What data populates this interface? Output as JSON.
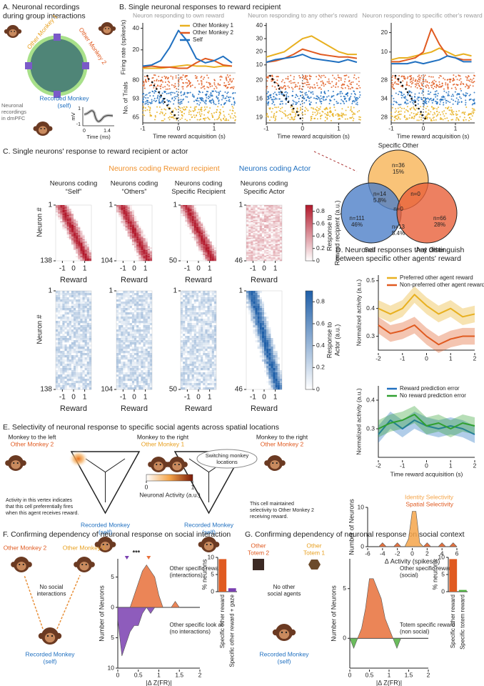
{
  "panel_a": {
    "title": [
      "A. Neuronal recordings",
      "during group interactions"
    ],
    "other_monkey_1": "Other Monkey 1",
    "other_monkey_2": "Other Monkey 2",
    "recorded_monkey": [
      "Recorded Monkey",
      "(self)"
    ],
    "recordings": [
      "Neuronal",
      "recordings",
      "in dmPFC"
    ],
    "waveform": {
      "ylabel": "mV",
      "yticks": [
        "1",
        "-1"
      ],
      "xlabel": "Time (ms)",
      "xticks": [
        "0",
        "1.4"
      ]
    }
  },
  "panel_b": {
    "title": "B. Single neuronal responses to reward recipient"
  },
  "panel_c": {
    "title": "C. Single neurons' response to reward recipient or actor",
    "group_recipient": "Neurons coding Reward recipient",
    "group_actor": "Neurons coding Actor",
    "columns": [
      [
        "Neurons coding",
        "“Self”"
      ],
      [
        "Neurons coding",
        "“Others”"
      ],
      [
        "Neurons coding",
        "Specific Recipient"
      ],
      [
        "Neurons coding",
        "Specific Actor"
      ]
    ],
    "colorbar_recipient": {
      "label": [
        "Response to",
        "Reward recipient (a.u.)"
      ],
      "lim": [
        0,
        0.9
      ],
      "ticks": [
        0,
        0.2,
        0.4,
        0.6,
        0.8
      ]
    },
    "colorbar_actor": {
      "label": [
        "Response to",
        "Actor (a.u.)"
      ],
      "lim": [
        0,
        0.9
      ],
      "ticks": [
        0,
        0.2,
        0.4,
        0.6,
        0.8
      ]
    },
    "venn": {
      "sets": [
        "Specific Other",
        "Self",
        "Any Other"
      ],
      "regions": [
        {
          "label": "n=36",
          "pct": "15%"
        },
        {
          "label": "n=14",
          "pct": "5.8%"
        },
        {
          "label": "n=0"
        },
        {
          "label": "n=0"
        },
        {
          "label": "n=111",
          "pct": "46%"
        },
        {
          "label": "n=13",
          "pct": "5.4%"
        },
        {
          "label": "n=66",
          "pct": "28%"
        }
      ]
    }
  },
  "panel_d": {
    "title": [
      "D. Neuronal responses that distinguish",
      "between specific other agents' reward"
    ]
  },
  "panel_e": {
    "title": "E. Selectivity of neuronal response to specific social agents across spatial locations",
    "left_monkey": [
      "Monkey to the left",
      "Other Monkey 2"
    ],
    "right_monkey": [
      "Monkey to the right",
      "Other Monkey 1"
    ],
    "right_monkey_2": [
      "Monkey to the right",
      "Other Monkey 2"
    ],
    "switching": [
      "Switching monkey",
      "locations"
    ],
    "recorded": [
      "Recorded Monkey",
      "(self)"
    ],
    "note_left": [
      "Activity in this vertex indicates",
      "that this cell preferentially fires",
      "when this agent receives reward."
    ],
    "note_right": [
      "This cell maintained",
      "selectivity to Other Monkey 2",
      "receiving reward."
    ],
    "colorbar": {
      "label": "Neuronal Activity (a.u.)",
      "ticks": [
        0,
        1
      ]
    }
  },
  "panel_f": {
    "title": "F. Confirming dependency of neuronal response on social interaction",
    "other_monkey_2": "Other Monkey 2",
    "other_monkey_1": "Other Monkey 1",
    "no_interactions": [
      "No social",
      "interactions"
    ],
    "recorded": [
      "Recorded Monkey",
      "(self)"
    ]
  },
  "panel_g": {
    "title": "G. Confirming dependency of neuronal response on social context",
    "totem_2": [
      "Other",
      "Totem 2"
    ],
    "totem_1": [
      "Other",
      "Totem 1"
    ],
    "no_agents": [
      "No other",
      "social agents"
    ],
    "recorded": [
      "Recorded Monkey",
      "(self)"
    ]
  },
  "chart_data": [
    {
      "type": "line",
      "subtitle": "Neuron responding to own reward",
      "ylabel": "Firing rate (spikes/s)",
      "xlabel": "Time reward acquisition (s)",
      "raster_ylabel": "No. of Trials",
      "raster_yticks": [
        80,
        93,
        65
      ],
      "x": [
        -1,
        -0.75,
        -0.5,
        -0.25,
        0,
        0.25,
        0.5,
        0.75,
        1,
        1.25,
        1.5
      ],
      "xlim": [
        -1,
        1.6
      ],
      "xticks": [
        -1,
        0,
        1
      ],
      "ylim": [
        0,
        45
      ],
      "yticks": [
        20,
        40
      ],
      "legend": "upper right",
      "series": [
        {
          "name": "Other Monkey 1",
          "color": "#e8b020",
          "values": [
            3,
            3,
            3,
            4,
            5,
            6,
            5,
            5,
            4,
            5,
            5
          ]
        },
        {
          "name": "Other Monkey 2",
          "color": "#e05a20",
          "values": [
            4,
            5,
            4,
            4,
            3,
            3,
            8,
            12,
            10,
            6,
            5
          ]
        },
        {
          "name": "Self",
          "color": "#2070c0",
          "values": [
            5,
            6,
            10,
            22,
            38,
            28,
            12,
            8,
            10,
            14,
            8
          ]
        }
      ]
    },
    {
      "type": "line",
      "subtitle": "Neuron responding to any other's reward",
      "xlabel": "Time reward acquisition (s)",
      "raster_yticks": [
        20,
        16,
        19
      ],
      "x": [
        -1,
        -0.75,
        -0.5,
        -0.25,
        0,
        0.25,
        0.5,
        0.75,
        1,
        1.25,
        1.5
      ],
      "xlim": [
        -1,
        1.6
      ],
      "xticks": [
        -1,
        0,
        1
      ],
      "ylim": [
        5,
        42
      ],
      "yticks": [
        10,
        20,
        30,
        40
      ],
      "series": [
        {
          "color": "#e8b020",
          "values": [
            16,
            18,
            20,
            25,
            30,
            32,
            28,
            24,
            20,
            18,
            18
          ]
        },
        {
          "color": "#e05a20",
          "values": [
            12,
            13,
            15,
            18,
            22,
            20,
            18,
            17,
            16,
            16,
            15
          ]
        },
        {
          "color": "#2070c0",
          "values": [
            12,
            14,
            15,
            16,
            18,
            15,
            14,
            13,
            12,
            14,
            12
          ]
        }
      ]
    },
    {
      "type": "line",
      "subtitle": "Neuron responding to specific other's reward",
      "xlabel": "Time reward acquisition (s)",
      "raster_yticks": [
        28,
        34,
        28
      ],
      "x": [
        -1,
        -0.75,
        -0.5,
        -0.25,
        0,
        0.25,
        0.5,
        0.75,
        1,
        1.25,
        1.5
      ],
      "xlim": [
        -1,
        1.6
      ],
      "xticks": [
        -1,
        0,
        1
      ],
      "ylim": [
        0,
        25
      ],
      "yticks": [
        10,
        20
      ],
      "series": [
        {
          "color": "#e8b020",
          "values": [
            6,
            7,
            7,
            8,
            9,
            10,
            12,
            10,
            8,
            9,
            8
          ]
        },
        {
          "color": "#e05a20",
          "values": [
            5,
            5,
            6,
            7,
            10,
            22,
            14,
            8,
            7,
            6,
            6
          ]
        },
        {
          "color": "#2070c0",
          "values": [
            4,
            4,
            4,
            5,
            4,
            5,
            6,
            8,
            7,
            5,
            5
          ]
        }
      ]
    },
    {
      "type": "heatmap",
      "ylabel": "Neuron #",
      "xlabel": "Reward",
      "ylim": [
        1,
        138
      ],
      "yticks": [
        1,
        138
      ],
      "xlim": [
        -1.6,
        1.6
      ],
      "xticks": [
        -1,
        0,
        1
      ],
      "color": "#b2182b"
    },
    {
      "type": "heatmap",
      "xlabel": "Reward",
      "ylim": [
        1,
        104
      ],
      "yticks": [
        1,
        104
      ],
      "xlim": [
        -1.6,
        1.6
      ],
      "xticks": [
        -1,
        0,
        1
      ],
      "color": "#b2182b"
    },
    {
      "type": "heatmap",
      "xlabel": "Reward",
      "ylim": [
        1,
        50
      ],
      "yticks": [
        1,
        50
      ],
      "xlim": [
        -1.6,
        1.6
      ],
      "xticks": [
        -1,
        0,
        1
      ],
      "color": "#b2182b"
    },
    {
      "type": "heatmap",
      "xlabel": "Reward",
      "ylim": [
        1,
        46
      ],
      "yticks": [
        1,
        46
      ],
      "xlim": [
        -1.6,
        1.6
      ],
      "xticks": [
        -1,
        0,
        1
      ],
      "color": "#b2182b"
    },
    {
      "type": "heatmap",
      "ylabel": "Neuron #",
      "xlabel": "Reward",
      "ylim": [
        1,
        138
      ],
      "yticks": [
        1,
        138
      ],
      "xlim": [
        -1.6,
        1.6
      ],
      "xticks": [
        -1,
        0,
        1
      ],
      "color": "#1f5fa8"
    },
    {
      "type": "heatmap",
      "xlabel": "Reward",
      "ylim": [
        1,
        104
      ],
      "yticks": [
        1,
        104
      ],
      "xlim": [
        -1.6,
        1.6
      ],
      "xticks": [
        -1,
        0,
        1
      ],
      "color": "#1f5fa8"
    },
    {
      "type": "heatmap",
      "xlabel": "Reward",
      "ylim": [
        1,
        50
      ],
      "yticks": [
        1,
        50
      ],
      "xlim": [
        -1.6,
        1.6
      ],
      "xticks": [
        -1,
        0,
        1
      ],
      "color": "#1f5fa8"
    },
    {
      "type": "heatmap",
      "xlabel": "Reward",
      "ylim": [
        1,
        46
      ],
      "yticks": [
        1,
        46
      ],
      "xlim": [
        -1.6,
        1.6
      ],
      "xticks": [
        -1,
        0,
        1
      ],
      "color": "#1f5fa8"
    },
    {
      "type": "line",
      "ylabel": "Normalized activity (a.u.)",
      "x": [
        -2,
        -1.5,
        -1,
        -0.5,
        0,
        0.5,
        1,
        1.5,
        2
      ],
      "xlim": [
        -2,
        2
      ],
      "xticks": [
        -2,
        -1,
        0,
        1,
        2
      ],
      "ylim": [
        0.25,
        0.52
      ],
      "yticks": [
        0.3,
        0.4,
        0.5
      ],
      "legend": "upper left",
      "series": [
        {
          "name": "Preferred other agent reward",
          "color": "#e8b020",
          "values": [
            0.4,
            0.38,
            0.4,
            0.45,
            0.41,
            0.38,
            0.4,
            0.37,
            0.38
          ],
          "errors": [
            0.03,
            0.03,
            0.03,
            0.03,
            0.03,
            0.03,
            0.03,
            0.03,
            0.03
          ]
        },
        {
          "name": "Non-preferred other agent reward",
          "color": "#e05a20",
          "values": [
            0.34,
            0.31,
            0.32,
            0.34,
            0.3,
            0.27,
            0.29,
            0.3,
            0.3
          ],
          "errors": [
            0.03,
            0.03,
            0.03,
            0.03,
            0.03,
            0.03,
            0.03,
            0.03,
            0.03
          ]
        }
      ]
    },
    {
      "type": "line",
      "ylabel": "Normalized activity (a.u.)",
      "xlabel": "Time reward acquisition (s)",
      "x": [
        -2,
        -1.5,
        -1,
        -0.5,
        0,
        0.5,
        1,
        1.5,
        2
      ],
      "xlim": [
        -2,
        2
      ],
      "xticks": [
        -2,
        -1,
        0,
        1,
        2
      ],
      "ylim": [
        0.2,
        0.45
      ],
      "yticks": [
        0.3,
        0.4
      ],
      "legend": "upper left",
      "series": [
        {
          "name": "Reward prediction error",
          "color": "#2070c0",
          "values": [
            0.28,
            0.33,
            0.3,
            0.33,
            0.31,
            0.3,
            0.31,
            0.3,
            0.28
          ],
          "errors": [
            0.03,
            0.03,
            0.03,
            0.03,
            0.03,
            0.03,
            0.03,
            0.03,
            0.03
          ]
        },
        {
          "name": "No reward prediction error",
          "color": "#30a030",
          "values": [
            0.3,
            0.32,
            0.33,
            0.35,
            0.31,
            0.32,
            0.3,
            0.32,
            0.31
          ],
          "errors": [
            0.03,
            0.03,
            0.03,
            0.03,
            0.03,
            0.03,
            0.03,
            0.03,
            0.03
          ]
        }
      ]
    },
    {
      "type": "area",
      "ylabel": "Number of Neurons",
      "xlabel": "Δ Activity (spikes/s)",
      "xlim": [
        -6,
        6
      ],
      "xticks": [
        -6,
        -4,
        -2,
        0,
        2,
        4,
        6
      ],
      "ylim": [
        0,
        10
      ],
      "yticks": [
        0,
        10
      ],
      "legend": "upper right",
      "series": [
        {
          "name": "Identity Selectivity",
          "color": "#f5a54a",
          "x": [
            -1,
            -0.5,
            0,
            0.5,
            1,
            1.5
          ],
          "values": [
            0,
            2,
            9,
            9,
            1,
            0
          ]
        },
        {
          "name": "Spatial Selectivity",
          "color": "#e05a20",
          "x": [
            -4.5,
            -4,
            -3.5,
            -2.5,
            -2,
            -1.5,
            1.5,
            2,
            2.5,
            3.5,
            4,
            4.5,
            5,
            5.5,
            6
          ],
          "values": [
            0,
            1,
            0,
            0,
            1,
            0,
            0,
            1,
            0,
            0,
            1,
            0,
            0,
            1,
            0
          ]
        }
      ]
    },
    {
      "type": "area",
      "ylabel": "Number of Neurons",
      "xlabel": "|Δ Z(FR)|",
      "xlim": [
        0,
        2
      ],
      "xticks": [
        0,
        0.5,
        1,
        1.5,
        2
      ],
      "ylim": [
        -10,
        8
      ],
      "yticks": [
        {
          "value": -10,
          "label": "10"
        },
        {
          "value": -5,
          "label": "5"
        },
        0,
        5
      ],
      "annotations": [
        [
          "Other specific reward",
          "(interactions)"
        ],
        [
          "Other specific look at",
          "(no interactions)"
        ]
      ],
      "significance": "***",
      "series": [
        {
          "color": "#e8703a",
          "x": [
            0.3,
            0.4,
            0.5,
            0.6,
            0.7,
            0.8,
            0.9,
            1.0,
            1.1,
            1.3,
            1.4,
            1.5
          ],
          "values": [
            0,
            2,
            4,
            6,
            7,
            6,
            5,
            2,
            0,
            0,
            1,
            0
          ]
        },
        {
          "color": "#7a40b0",
          "x": [
            0,
            0.1,
            0.2,
            0.3,
            0.4,
            0.5,
            0.6,
            0.7,
            0.8,
            0.9
          ],
          "values": [
            -2,
            -8,
            -6,
            -4,
            -3,
            -3,
            -1,
            0,
            -1,
            0
          ]
        }
      ]
    },
    {
      "type": "bar",
      "ylabel": "% neurons",
      "categories": [
        "Specific other reward",
        "Specific other reward + gaze"
      ],
      "values": [
        9.5,
        1
      ],
      "colors": [
        "#e05a20",
        "#7a40b0"
      ],
      "ylim": [
        0,
        10
      ],
      "yticks": [
        0,
        5,
        10
      ]
    },
    {
      "type": "area",
      "ylabel": "Number of Neurons",
      "xlabel": "|Δ Z(FR)|",
      "xlim": [
        0,
        2
      ],
      "xticks": [
        0,
        0.5,
        1,
        1.5,
        2
      ],
      "ylim": [
        -3,
        8
      ],
      "yticks": [
        0,
        5
      ],
      "annotations": [
        [
          "Other specific reward",
          "(social)"
        ],
        [
          "Totem specific reward",
          "(non social)"
        ]
      ],
      "series": [
        {
          "color": "#e8703a",
          "x": [
            0.2,
            0.3,
            0.4,
            0.5,
            0.6,
            0.7,
            0.8,
            0.9,
            1.0,
            1.1
          ],
          "values": [
            0,
            1,
            3,
            6,
            6,
            5,
            4,
            2,
            1,
            0
          ]
        },
        {
          "color": "#50b040",
          "x": [
            0,
            0.1,
            0.2,
            1.1,
            1.2,
            1.3
          ],
          "values": [
            0,
            -1,
            0,
            0,
            -1,
            0
          ]
        }
      ]
    },
    {
      "type": "bar",
      "ylabel": "% neurons",
      "categories": [
        "Specific other reward",
        "Specific totem reward"
      ],
      "values": [
        9.5,
        0.5
      ],
      "colors": [
        "#e05a20",
        "#50b040"
      ],
      "ylim": [
        0,
        10
      ],
      "yticks": [
        0,
        5,
        10
      ]
    }
  ]
}
